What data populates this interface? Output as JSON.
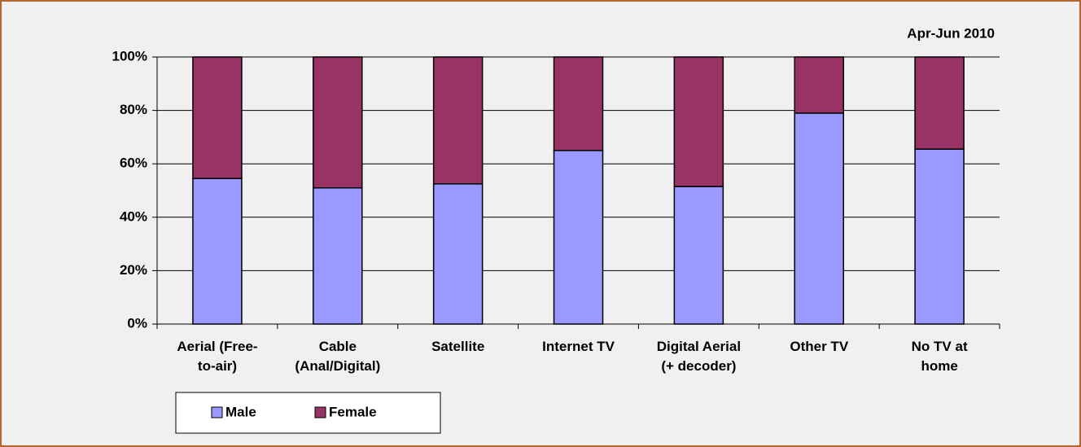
{
  "chart_data": {
    "type": "stacked_bar",
    "subtitle": "Apr-Jun 2010",
    "categories": [
      "Aerial (Free-\nto-air)",
      "Cable\n(Anal/Digital)",
      "Satellite",
      "Internet TV",
      "Digital Aerial\n(+ decoder)",
      "Other TV",
      "No TV at\nhome"
    ],
    "series": [
      {
        "name": "Male",
        "color": "#9999ff",
        "values": [
          54.5,
          51,
          52.5,
          65,
          51.5,
          79,
          65.5
        ]
      },
      {
        "name": "Female",
        "color": "#993366",
        "values": [
          45.5,
          49,
          47.5,
          35,
          48.5,
          21,
          34.5
        ]
      }
    ],
    "ylim": [
      0,
      100
    ],
    "yticks": [
      {
        "value": 0,
        "label": "0%"
      },
      {
        "value": 20,
        "label": "20%"
      },
      {
        "value": 40,
        "label": "40%"
      },
      {
        "value": 60,
        "label": "60%"
      },
      {
        "value": 80,
        "label": "80%"
      },
      {
        "value": 100,
        "label": "100%"
      }
    ],
    "grid": true,
    "legend": "bottom-left"
  }
}
